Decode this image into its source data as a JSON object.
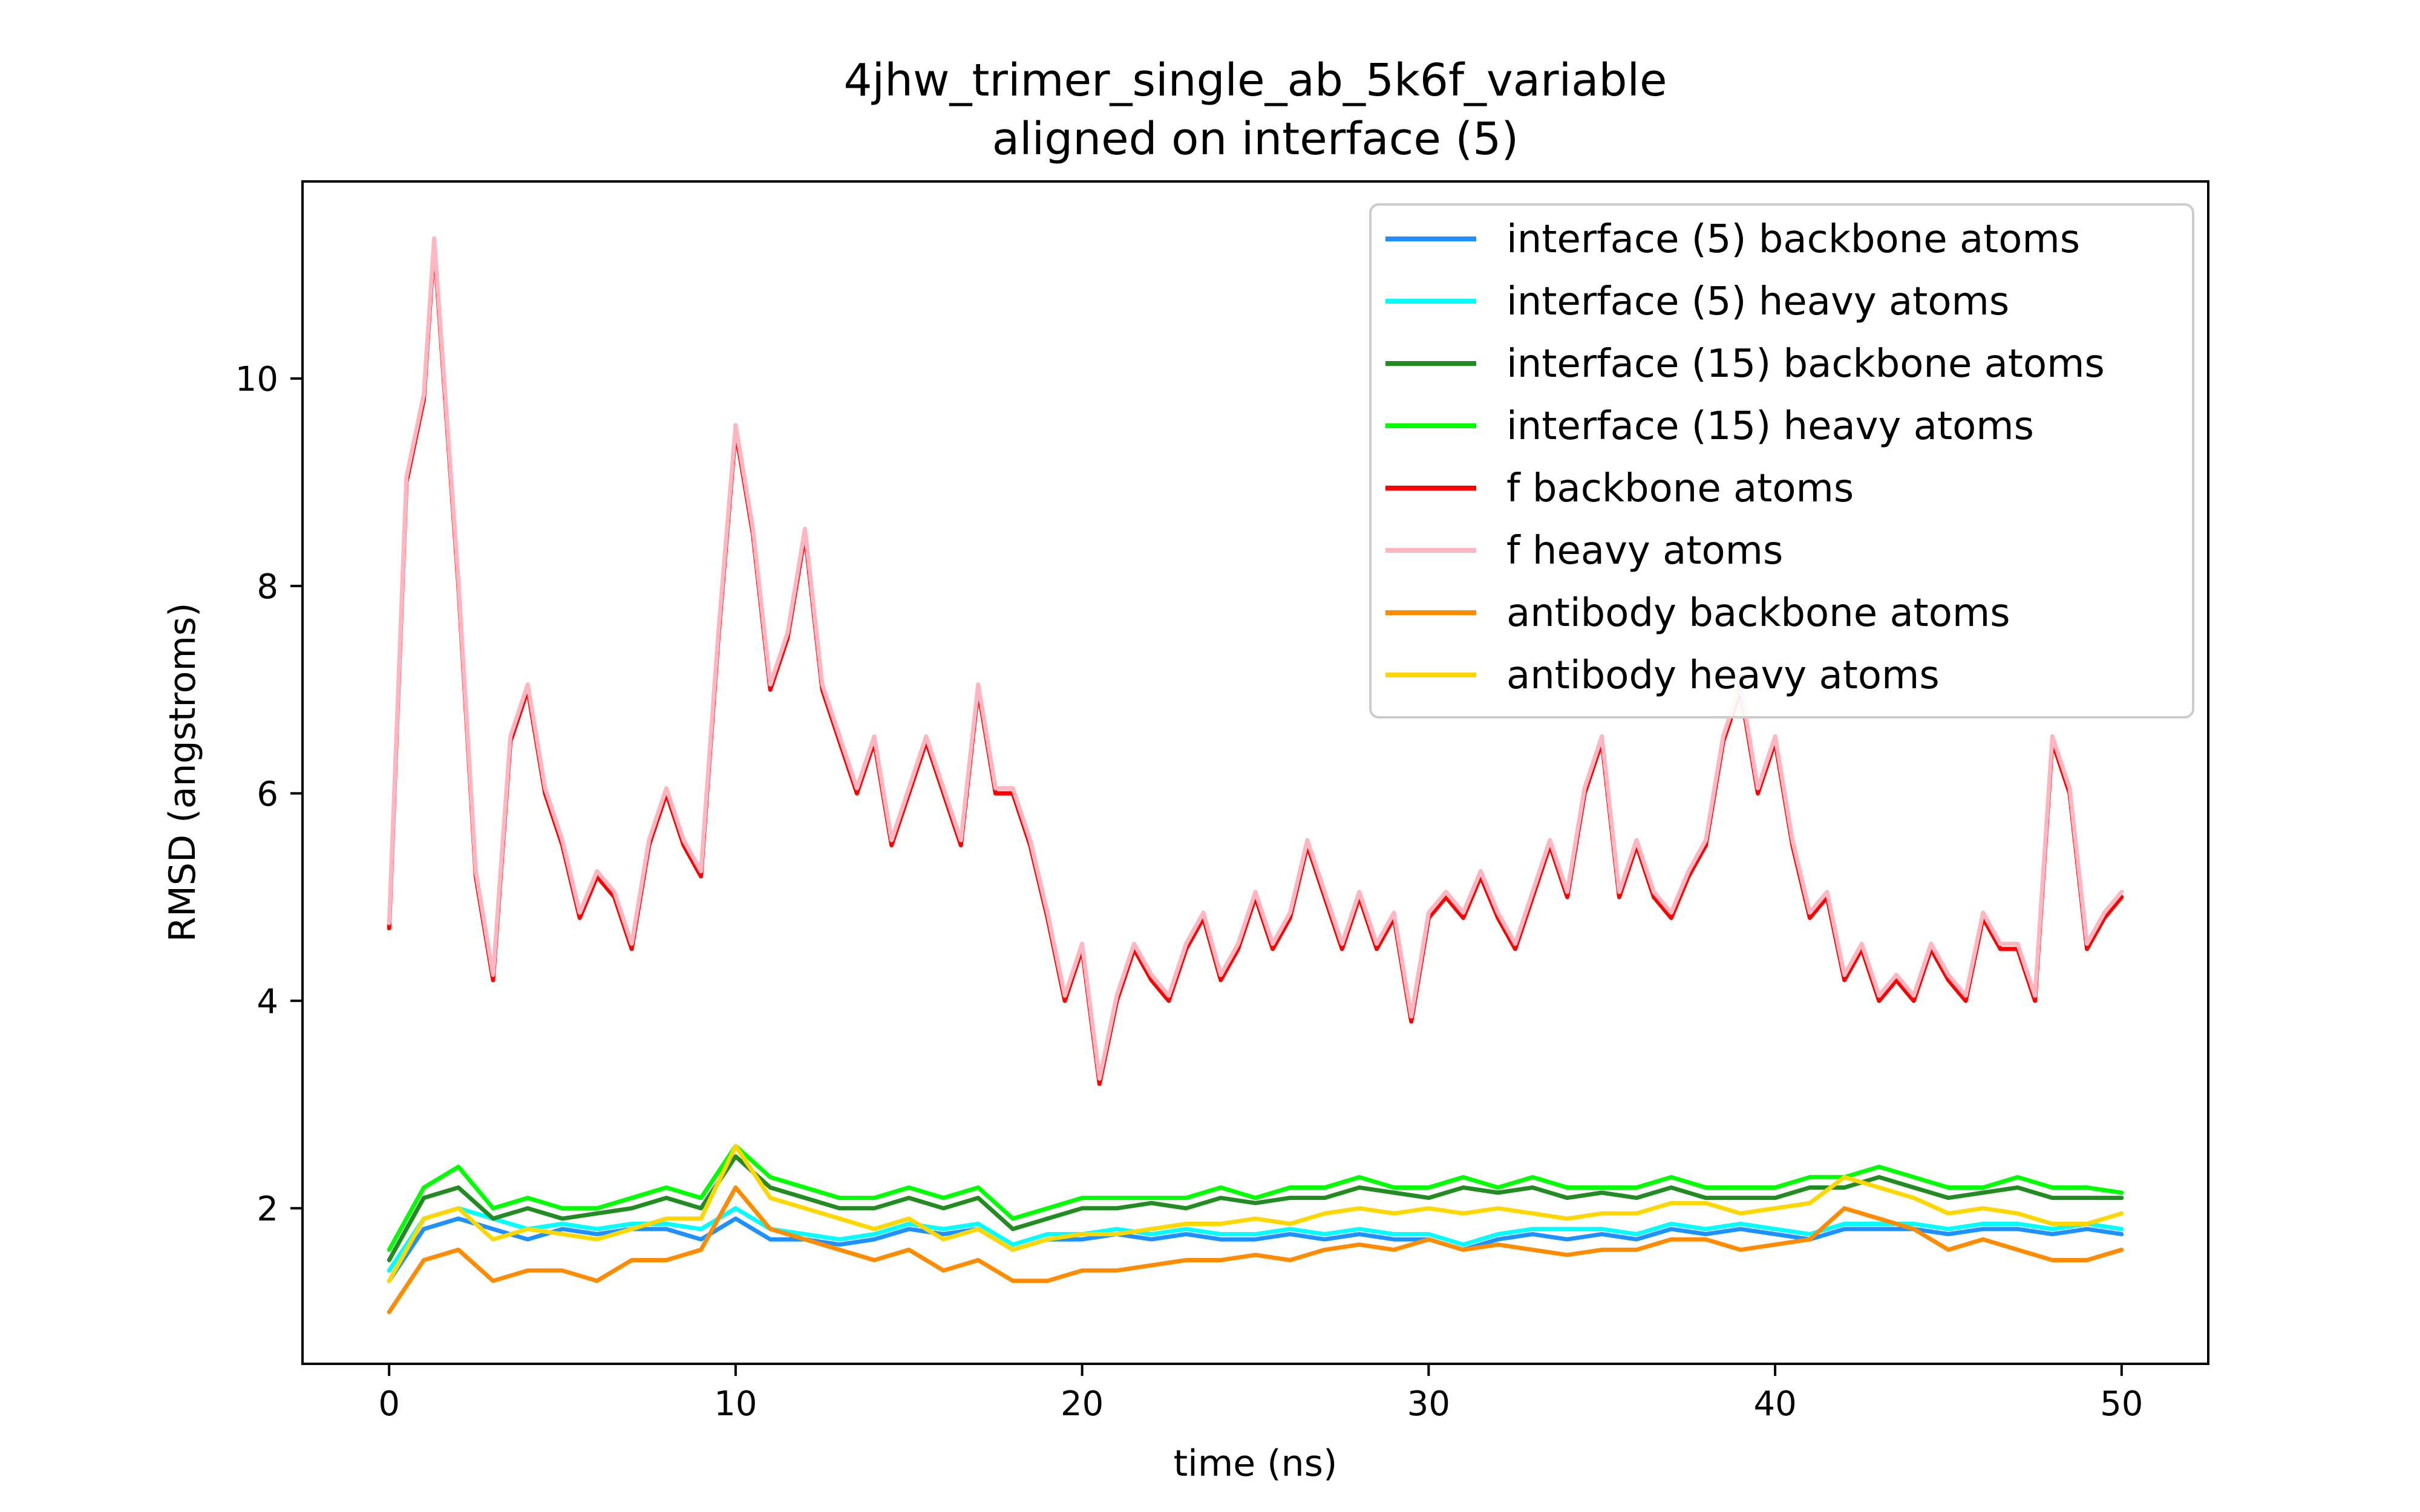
{
  "chart_data": {
    "type": "line",
    "title": [
      "4jhw_trimer_single_ab_5k6f_variable",
      "aligned on interface (5)"
    ],
    "xlabel": "time (ns)",
    "ylabel": "RMSD (angstroms)",
    "xlim": [
      -2.5,
      52.5
    ],
    "ylim": [
      0.5,
      11.9
    ],
    "xticks": [
      0,
      10,
      20,
      30,
      40,
      50
    ],
    "yticks": [
      2,
      4,
      6,
      8,
      10
    ],
    "xtick_labels": [
      "0",
      "10",
      "20",
      "30",
      "40",
      "50"
    ],
    "ytick_labels": [
      "2",
      "4",
      "6",
      "8",
      "10"
    ],
    "grid": false,
    "legend_position": "top-right",
    "series": [
      {
        "name": "interface (5) backbone atoms",
        "color": "#1e90ff",
        "x": [
          0,
          1,
          2,
          3,
          4,
          5,
          6,
          7,
          8,
          9,
          10,
          11,
          12,
          13,
          14,
          15,
          16,
          17,
          18,
          19,
          20,
          21,
          22,
          23,
          24,
          25,
          26,
          27,
          28,
          29,
          30,
          31,
          32,
          33,
          34,
          35,
          36,
          37,
          38,
          39,
          40,
          41,
          42,
          43,
          44,
          45,
          46,
          47,
          48,
          49,
          50
        ],
        "values": [
          1.3,
          1.8,
          1.9,
          1.8,
          1.7,
          1.8,
          1.75,
          1.8,
          1.8,
          1.7,
          1.9,
          1.7,
          1.7,
          1.65,
          1.7,
          1.8,
          1.75,
          1.8,
          1.6,
          1.7,
          1.7,
          1.75,
          1.7,
          1.75,
          1.7,
          1.7,
          1.75,
          1.7,
          1.75,
          1.7,
          1.7,
          1.6,
          1.7,
          1.75,
          1.7,
          1.75,
          1.7,
          1.8,
          1.75,
          1.8,
          1.75,
          1.7,
          1.8,
          1.8,
          1.8,
          1.75,
          1.8,
          1.8,
          1.75,
          1.8,
          1.75
        ]
      },
      {
        "name": "interface (5) heavy atoms",
        "color": "#00ffff",
        "x": [
          0,
          1,
          2,
          3,
          4,
          5,
          6,
          7,
          8,
          9,
          10,
          11,
          12,
          13,
          14,
          15,
          16,
          17,
          18,
          19,
          20,
          21,
          22,
          23,
          24,
          25,
          26,
          27,
          28,
          29,
          30,
          31,
          32,
          33,
          34,
          35,
          36,
          37,
          38,
          39,
          40,
          41,
          42,
          43,
          44,
          45,
          46,
          47,
          48,
          49,
          50
        ],
        "values": [
          1.4,
          1.9,
          2.0,
          1.9,
          1.8,
          1.85,
          1.8,
          1.85,
          1.85,
          1.8,
          2.0,
          1.8,
          1.75,
          1.7,
          1.75,
          1.85,
          1.8,
          1.85,
          1.65,
          1.75,
          1.75,
          1.8,
          1.75,
          1.8,
          1.75,
          1.75,
          1.8,
          1.75,
          1.8,
          1.75,
          1.75,
          1.65,
          1.75,
          1.8,
          1.8,
          1.8,
          1.75,
          1.85,
          1.8,
          1.85,
          1.8,
          1.75,
          1.85,
          1.85,
          1.85,
          1.8,
          1.85,
          1.85,
          1.8,
          1.85,
          1.8
        ]
      },
      {
        "name": "interface (15) backbone atoms",
        "color": "#228b22",
        "x": [
          0,
          1,
          2,
          3,
          4,
          5,
          6,
          7,
          8,
          9,
          10,
          11,
          12,
          13,
          14,
          15,
          16,
          17,
          18,
          19,
          20,
          21,
          22,
          23,
          24,
          25,
          26,
          27,
          28,
          29,
          30,
          31,
          32,
          33,
          34,
          35,
          36,
          37,
          38,
          39,
          40,
          41,
          42,
          43,
          44,
          45,
          46,
          47,
          48,
          49,
          50
        ],
        "values": [
          1.5,
          2.1,
          2.2,
          1.9,
          2.0,
          1.9,
          1.95,
          2.0,
          2.1,
          2.0,
          2.5,
          2.2,
          2.1,
          2.0,
          2.0,
          2.1,
          2.0,
          2.1,
          1.8,
          1.9,
          2.0,
          2.0,
          2.05,
          2.0,
          2.1,
          2.05,
          2.1,
          2.1,
          2.2,
          2.15,
          2.1,
          2.2,
          2.15,
          2.2,
          2.1,
          2.15,
          2.1,
          2.2,
          2.1,
          2.1,
          2.1,
          2.2,
          2.2,
          2.3,
          2.2,
          2.1,
          2.15,
          2.2,
          2.1,
          2.1,
          2.1
        ]
      },
      {
        "name": "interface (15) heavy atoms",
        "color": "#00ff00",
        "x": [
          0,
          1,
          2,
          3,
          4,
          5,
          6,
          7,
          8,
          9,
          10,
          11,
          12,
          13,
          14,
          15,
          16,
          17,
          18,
          19,
          20,
          21,
          22,
          23,
          24,
          25,
          26,
          27,
          28,
          29,
          30,
          31,
          32,
          33,
          34,
          35,
          36,
          37,
          38,
          39,
          40,
          41,
          42,
          43,
          44,
          45,
          46,
          47,
          48,
          49,
          50
        ],
        "values": [
          1.6,
          2.2,
          2.4,
          2.0,
          2.1,
          2.0,
          2.0,
          2.1,
          2.2,
          2.1,
          2.6,
          2.3,
          2.2,
          2.1,
          2.1,
          2.2,
          2.1,
          2.2,
          1.9,
          2.0,
          2.1,
          2.1,
          2.1,
          2.1,
          2.2,
          2.1,
          2.2,
          2.2,
          2.3,
          2.2,
          2.2,
          2.3,
          2.2,
          2.3,
          2.2,
          2.2,
          2.2,
          2.3,
          2.2,
          2.2,
          2.2,
          2.3,
          2.3,
          2.4,
          2.3,
          2.2,
          2.2,
          2.3,
          2.2,
          2.2,
          2.15
        ]
      },
      {
        "name": "f backbone atoms",
        "color": "#ff0000",
        "x": [
          0,
          0.5,
          1,
          1.3,
          2,
          2.5,
          3,
          3.5,
          4,
          4.5,
          5,
          5.5,
          6,
          6.5,
          7,
          7.5,
          8,
          8.5,
          9,
          9.5,
          10,
          10.5,
          11,
          11.5,
          12,
          12.5,
          13,
          13.5,
          14,
          14.5,
          15,
          15.5,
          16,
          16.5,
          17,
          17.5,
          18,
          18.5,
          19,
          19.5,
          20,
          20.5,
          21,
          21.5,
          22,
          22.5,
          23,
          23.5,
          24,
          24.5,
          25,
          25.5,
          26,
          26.5,
          27,
          27.5,
          28,
          28.5,
          29,
          29.5,
          30,
          30.5,
          31,
          31.5,
          32,
          32.5,
          33,
          33.5,
          34,
          34.5,
          35,
          35.5,
          36,
          36.5,
          37,
          37.5,
          38,
          38.5,
          39,
          39.5,
          40,
          40.5,
          41,
          41.5,
          42,
          42.5,
          43,
          43.5,
          44,
          44.5,
          45,
          45.5,
          46,
          46.5,
          47,
          47.5,
          48,
          48.5,
          49,
          49.5,
          50
        ],
        "values": [
          4.7,
          9.0,
          9.8,
          11.3,
          8.0,
          5.2,
          4.2,
          6.5,
          7.0,
          6.0,
          5.5,
          4.8,
          5.2,
          5.0,
          4.5,
          5.5,
          6.0,
          5.5,
          5.2,
          7.5,
          9.5,
          8.5,
          7.0,
          7.5,
          8.5,
          7.0,
          6.5,
          6.0,
          6.5,
          5.5,
          6.0,
          6.5,
          6.0,
          5.5,
          7.0,
          6.0,
          6.0,
          5.5,
          4.8,
          4.0,
          4.5,
          3.2,
          4.0,
          4.5,
          4.2,
          4.0,
          4.5,
          4.8,
          4.2,
          4.5,
          5.0,
          4.5,
          4.8,
          5.5,
          5.0,
          4.5,
          5.0,
          4.5,
          4.8,
          3.8,
          4.8,
          5.0,
          4.8,
          5.2,
          4.8,
          4.5,
          5.0,
          5.5,
          5.0,
          6.0,
          6.5,
          5.0,
          5.5,
          5.0,
          4.8,
          5.2,
          5.5,
          6.5,
          7.0,
          6.0,
          6.5,
          5.5,
          4.8,
          5.0,
          4.2,
          4.5,
          4.0,
          4.2,
          4.0,
          4.5,
          4.2,
          4.0,
          4.8,
          4.5,
          4.5,
          4.0,
          6.5,
          6.0,
          4.5,
          4.8,
          5.0
        ]
      },
      {
        "name": "f heavy atoms",
        "color": "#ffb6c1",
        "x": [
          0,
          0.5,
          1,
          1.3,
          2,
          2.5,
          3,
          3.5,
          4,
          4.5,
          5,
          5.5,
          6,
          6.5,
          7,
          7.5,
          8,
          8.5,
          9,
          9.5,
          10,
          10.5,
          11,
          11.5,
          12,
          12.5,
          13,
          13.5,
          14,
          14.5,
          15,
          15.5,
          16,
          16.5,
          17,
          17.5,
          18,
          18.5,
          19,
          19.5,
          20,
          20.5,
          21,
          21.5,
          22,
          22.5,
          23,
          23.5,
          24,
          24.5,
          25,
          25.5,
          26,
          26.5,
          27,
          27.5,
          28,
          28.5,
          29,
          29.5,
          30,
          30.5,
          31,
          31.5,
          32,
          32.5,
          33,
          33.5,
          34,
          34.5,
          35,
          35.5,
          36,
          36.5,
          37,
          37.5,
          38,
          38.5,
          39,
          39.5,
          40,
          40.5,
          41,
          41.5,
          42,
          42.5,
          43,
          43.5,
          44,
          44.5,
          45,
          45.5,
          46,
          46.5,
          47,
          47.5,
          48,
          48.5,
          49,
          49.5,
          50
        ],
        "values": [
          4.75,
          9.05,
          9.85,
          11.35,
          8.05,
          5.25,
          4.25,
          6.55,
          7.05,
          6.05,
          5.55,
          4.85,
          5.25,
          5.05,
          4.55,
          5.55,
          6.05,
          5.55,
          5.25,
          7.55,
          9.55,
          8.55,
          7.05,
          7.55,
          8.55,
          7.05,
          6.55,
          6.05,
          6.55,
          5.55,
          6.05,
          6.55,
          6.05,
          5.55,
          7.05,
          6.05,
          6.05,
          5.55,
          4.85,
          4.05,
          4.55,
          3.25,
          4.05,
          4.55,
          4.25,
          4.05,
          4.55,
          4.85,
          4.25,
          4.55,
          5.05,
          4.55,
          4.85,
          5.55,
          5.05,
          4.55,
          5.05,
          4.55,
          4.85,
          3.85,
          4.85,
          5.05,
          4.85,
          5.25,
          4.85,
          4.55,
          5.05,
          5.55,
          5.05,
          6.05,
          6.55,
          5.05,
          5.55,
          5.05,
          4.85,
          5.25,
          5.55,
          6.55,
          7.05,
          6.05,
          6.55,
          5.55,
          4.85,
          5.05,
          4.25,
          4.55,
          4.05,
          4.25,
          4.05,
          4.55,
          4.25,
          4.05,
          4.85,
          4.55,
          4.55,
          4.05,
          6.55,
          6.05,
          4.55,
          4.85,
          5.05
        ]
      },
      {
        "name": "antibody backbone atoms",
        "color": "#ff8c00",
        "x": [
          0,
          1,
          2,
          3,
          4,
          5,
          6,
          7,
          8,
          9,
          10,
          11,
          12,
          13,
          14,
          15,
          16,
          17,
          18,
          19,
          20,
          21,
          22,
          23,
          24,
          25,
          26,
          27,
          28,
          29,
          30,
          31,
          32,
          33,
          34,
          35,
          36,
          37,
          38,
          39,
          40,
          41,
          42,
          43,
          44,
          45,
          46,
          47,
          48,
          49,
          50
        ],
        "values": [
          1.0,
          1.5,
          1.6,
          1.3,
          1.4,
          1.4,
          1.3,
          1.5,
          1.5,
          1.6,
          2.2,
          1.8,
          1.7,
          1.6,
          1.5,
          1.6,
          1.4,
          1.5,
          1.3,
          1.3,
          1.4,
          1.4,
          1.45,
          1.5,
          1.5,
          1.55,
          1.5,
          1.6,
          1.65,
          1.6,
          1.7,
          1.6,
          1.65,
          1.6,
          1.55,
          1.6,
          1.6,
          1.7,
          1.7,
          1.6,
          1.65,
          1.7,
          2.0,
          1.9,
          1.8,
          1.6,
          1.7,
          1.6,
          1.5,
          1.5,
          1.6
        ]
      },
      {
        "name": "antibody heavy atoms",
        "color": "#ffd700",
        "x": [
          0,
          1,
          2,
          3,
          4,
          5,
          6,
          7,
          8,
          9,
          10,
          11,
          12,
          13,
          14,
          15,
          16,
          17,
          18,
          19,
          20,
          21,
          22,
          23,
          24,
          25,
          26,
          27,
          28,
          29,
          30,
          31,
          32,
          33,
          34,
          35,
          36,
          37,
          38,
          39,
          40,
          41,
          42,
          43,
          44,
          45,
          46,
          47,
          48,
          49,
          50
        ],
        "values": [
          1.3,
          1.9,
          2.0,
          1.7,
          1.8,
          1.75,
          1.7,
          1.8,
          1.9,
          1.9,
          2.6,
          2.1,
          2.0,
          1.9,
          1.8,
          1.9,
          1.7,
          1.8,
          1.6,
          1.7,
          1.75,
          1.75,
          1.8,
          1.85,
          1.85,
          1.9,
          1.85,
          1.95,
          2.0,
          1.95,
          2.0,
          1.95,
          2.0,
          1.95,
          1.9,
          1.95,
          1.95,
          2.05,
          2.05,
          1.95,
          2.0,
          2.05,
          2.3,
          2.2,
          2.1,
          1.95,
          2.0,
          1.95,
          1.85,
          1.85,
          1.95
        ]
      }
    ]
  }
}
